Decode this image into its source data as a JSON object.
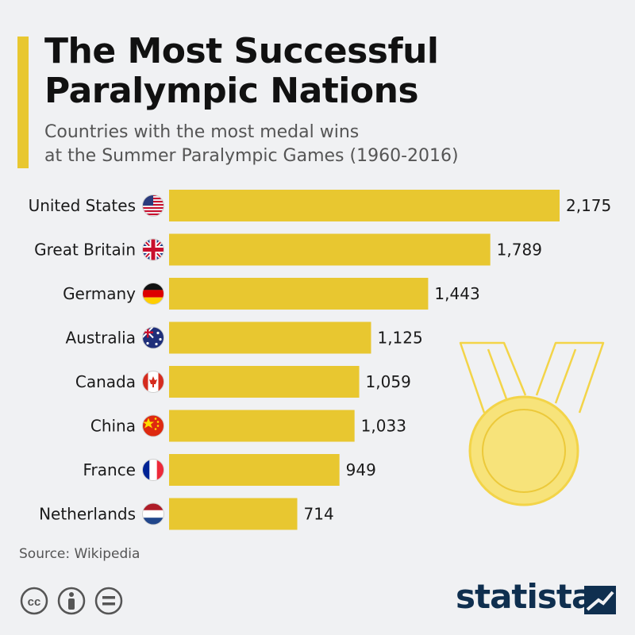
{
  "header": {
    "title_line1": "The Most Successful",
    "title_line2": "Paralympic Nations",
    "subtitle_line1": "Countries with the most medal wins",
    "subtitle_line2": "at the Summer Paralympic Games (1960-2016)"
  },
  "chart_data": {
    "type": "bar",
    "orientation": "horizontal",
    "title": "The Most Successful Paralympic Nations",
    "subtitle": "Countries with the most medal wins at the Summer Paralympic Games (1960-2016)",
    "categories": [
      "United States",
      "Great Britain",
      "Germany",
      "Australia",
      "Canada",
      "China",
      "France",
      "Netherlands"
    ],
    "values": [
      2175,
      1789,
      1443,
      1125,
      1059,
      1033,
      949,
      714
    ],
    "value_labels": [
      "2,175",
      "1,789",
      "1,443",
      "1,125",
      "1,059",
      "1,033",
      "949",
      "714"
    ],
    "flags": [
      "us-flag-icon",
      "uk-flag-icon",
      "germany-flag-icon",
      "australia-flag-icon",
      "canada-flag-icon",
      "china-flag-icon",
      "france-flag-icon",
      "netherlands-flag-icon"
    ],
    "xlim": [
      0,
      2175
    ],
    "grid": false,
    "legend": "none",
    "bar_color": "#e8c730"
  },
  "decoration": {
    "icon": "medal-icon",
    "color": "#f3d448"
  },
  "footer": {
    "source": "Source: Wikipedia",
    "license_icons": [
      "cc-icon",
      "attribution-icon",
      "no-derivatives-icon"
    ],
    "brand": "statista"
  },
  "colors": {
    "background": "#f0f1f3",
    "accent": "#e8c730",
    "title": "#111111",
    "subtitle": "#555555",
    "brand": "#0f2f4f"
  }
}
